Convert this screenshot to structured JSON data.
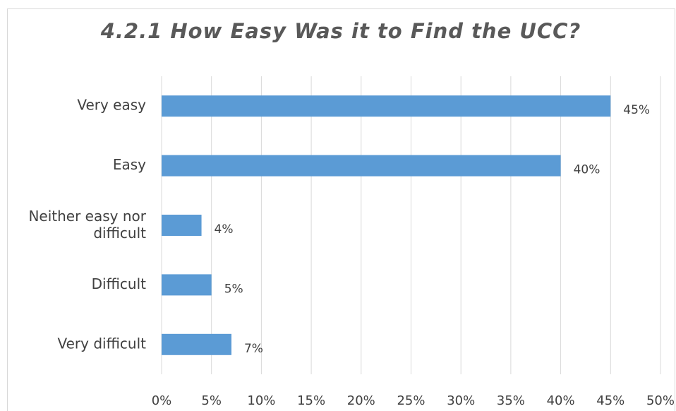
{
  "chart_data": {
    "type": "bar",
    "orientation": "horizontal",
    "title": "4.2.1 How Easy Was it to Find the UCC?",
    "categories": [
      "Very easy",
      "Easy",
      "Neither easy nor difficult",
      "Difficult",
      "Very difficult"
    ],
    "values": [
      45,
      40,
      4,
      5,
      7
    ],
    "value_labels": [
      "45%",
      "40%",
      "4%",
      "5%",
      "7%"
    ],
    "color": "#5b9bd5",
    "xlim": [
      0,
      50
    ],
    "xticks": [
      {
        "value": 0,
        "label": "0%"
      },
      {
        "value": 5,
        "label": "5%"
      },
      {
        "value": 10,
        "label": "10%"
      },
      {
        "value": 15,
        "label": "15%"
      },
      {
        "value": 20,
        "label": "20%"
      },
      {
        "value": 25,
        "label": "25%"
      },
      {
        "value": 30,
        "label": "30%"
      },
      {
        "value": 35,
        "label": "35%"
      },
      {
        "value": 40,
        "label": "40%"
      },
      {
        "value": 45,
        "label": "45%"
      },
      {
        "value": 50,
        "label": "50%"
      }
    ],
    "grid": true
  }
}
